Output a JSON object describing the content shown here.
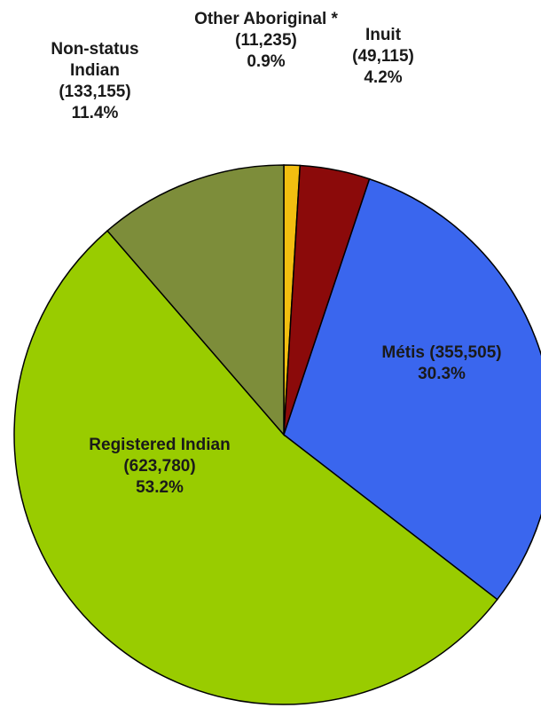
{
  "chart_data": {
    "type": "pie",
    "categories": [
      "Other Aboriginal *",
      "Inuit",
      "Métis",
      "Registered Indian",
      "Non-status Indian"
    ],
    "values": [
      11235,
      49115,
      355505,
      623780,
      133155
    ],
    "value_labels": [
      "(11,235)",
      "(49,115)",
      "(355,505)",
      "(623,780)",
      "(133,155)"
    ],
    "percent_labels": [
      "0.9%",
      "4.2%",
      "30.3%",
      "53.2%",
      "11.4%"
    ],
    "colors": [
      "#f2be10",
      "#8b0a0a",
      "#3a66ee",
      "#99cc00",
      "#7d8d3a"
    ]
  }
}
